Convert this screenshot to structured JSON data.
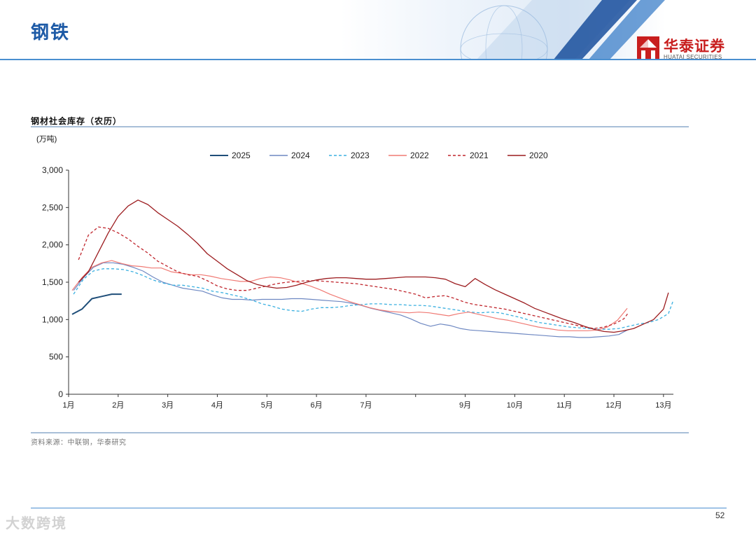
{
  "header": {
    "page_title": "钢铁",
    "logo_name": "华泰证券",
    "logo_sub": "HUATAI SECURITIES"
  },
  "chart_title": "钢材社会库存（农历）",
  "unit_label": "(万吨)",
  "source": "资料来源：中联钢，华泰研究",
  "page_number": "52",
  "watermark": "大数跨境",
  "colors": {
    "brand_blue": "#1d5aa6",
    "brand_red": "#c81e1e"
  },
  "chart_data": {
    "type": "line",
    "title": "钢材社会库存（农历）",
    "ylabel": "(万吨)",
    "xlabel": "",
    "ylim": [
      0,
      3000
    ],
    "yticks": [
      0,
      500,
      1000,
      1500,
      2000,
      2500,
      3000
    ],
    "ytick_labels": [
      "0",
      "500",
      "1,000",
      "1,500",
      "2,000",
      "2,500",
      "3,000"
    ],
    "xlim": [
      1,
      13.2
    ],
    "xticks": [
      1,
      2,
      3,
      4,
      5,
      6,
      7,
      8,
      9,
      10,
      11,
      12,
      13
    ],
    "xtick_labels": [
      "1月",
      "2月",
      "3月",
      "4月",
      "5月",
      "6月",
      "7月",
      "",
      "9月",
      "10月",
      "11月",
      "12月",
      "13月"
    ],
    "legend_position": "top",
    "series": [
      {
        "name": "2025",
        "color": "#1f4e79",
        "dash": "",
        "width": 2,
        "x": [
          1.07,
          1.27,
          1.47,
          1.67,
          1.87,
          2.07
        ],
        "y": [
          1070,
          1140,
          1280,
          1310,
          1340,
          1340
        ]
      },
      {
        "name": "2024",
        "color": "#6e88c2",
        "dash": "",
        "width": 1.2,
        "x": [
          1.1,
          1.3,
          1.5,
          1.7,
          1.9,
          2.1,
          2.3,
          2.5,
          2.7,
          2.9,
          3.1,
          3.3,
          3.5,
          3.7,
          3.9,
          4.1,
          4.3,
          4.5,
          4.7,
          4.9,
          5.1,
          5.3,
          5.5,
          5.7,
          5.9,
          6.1,
          6.3,
          6.5,
          6.7,
          6.9,
          7.1,
          7.3,
          7.5,
          7.7,
          7.9,
          8.1,
          8.3,
          8.5,
          8.7,
          8.9,
          9.1,
          9.3,
          9.5,
          9.7,
          9.9,
          10.1,
          10.3,
          10.5,
          10.7,
          10.9,
          11.1,
          11.3,
          11.5,
          11.7,
          11.9,
          12.1,
          12.3
        ],
        "y": [
          1390,
          1560,
          1700,
          1760,
          1760,
          1740,
          1700,
          1650,
          1570,
          1500,
          1460,
          1420,
          1400,
          1380,
          1330,
          1290,
          1270,
          1270,
          1260,
          1270,
          1270,
          1270,
          1280,
          1280,
          1270,
          1260,
          1250,
          1240,
          1220,
          1190,
          1150,
          1120,
          1090,
          1060,
          1010,
          950,
          910,
          940,
          920,
          880,
          860,
          850,
          840,
          830,
          820,
          810,
          800,
          790,
          780,
          770,
          770,
          760,
          760,
          770,
          780,
          800,
          870
        ]
      },
      {
        "name": "2023",
        "color": "#3bb0e0",
        "dash": "4,3",
        "width": 1.3,
        "x": [
          1.1,
          1.3,
          1.5,
          1.7,
          1.9,
          2.1,
          2.3,
          2.5,
          2.7,
          2.9,
          3.1,
          3.3,
          3.5,
          3.7,
          3.9,
          4.1,
          4.3,
          4.5,
          4.7,
          4.9,
          5.1,
          5.3,
          5.5,
          5.7,
          5.9,
          6.1,
          6.3,
          6.5,
          6.7,
          6.9,
          7.1,
          7.3,
          7.5,
          7.7,
          7.9,
          8.1,
          8.3,
          8.5,
          8.7,
          8.9,
          9.1,
          9.3,
          9.5,
          9.7,
          9.9,
          10.1,
          10.3,
          10.5,
          10.7,
          10.9,
          11.1,
          11.3,
          11.5,
          11.7,
          11.9,
          12.1,
          12.3,
          12.5,
          12.7,
          12.9,
          13.1,
          13.2
        ],
        "y": [
          1340,
          1540,
          1650,
          1680,
          1680,
          1670,
          1640,
          1590,
          1530,
          1490,
          1460,
          1460,
          1440,
          1420,
          1380,
          1360,
          1330,
          1300,
          1260,
          1210,
          1180,
          1140,
          1120,
          1110,
          1140,
          1160,
          1160,
          1170,
          1190,
          1200,
          1210,
          1210,
          1200,
          1200,
          1190,
          1190,
          1180,
          1160,
          1140,
          1120,
          1100,
          1090,
          1100,
          1090,
          1060,
          1030,
          990,
          960,
          940,
          920,
          900,
          890,
          880,
          870,
          870,
          880,
          910,
          940,
          960,
          1000,
          1080,
          1260
        ]
      },
      {
        "name": "2022",
        "color": "#f07a74",
        "dash": "",
        "width": 1.2,
        "x": [
          1.07,
          1.27,
          1.47,
          1.67,
          1.87,
          2.07,
          2.27,
          2.47,
          2.67,
          2.87,
          3.07,
          3.27,
          3.47,
          3.67,
          3.87,
          4.07,
          4.27,
          4.47,
          4.67,
          4.87,
          5.07,
          5.27,
          5.47,
          5.67,
          5.87,
          6.07,
          6.27,
          6.47,
          6.67,
          6.87,
          7.07,
          7.27,
          7.47,
          7.67,
          7.87,
          8.07,
          8.27,
          8.47,
          8.67,
          8.87,
          9.07,
          9.27,
          9.47,
          9.67,
          9.87,
          10.07,
          10.27,
          10.47,
          10.67,
          10.87,
          11.07,
          11.27,
          11.47,
          11.67,
          11.87,
          12.07,
          12.27
        ],
        "y": [
          1390,
          1560,
          1700,
          1760,
          1790,
          1750,
          1720,
          1710,
          1690,
          1690,
          1640,
          1620,
          1600,
          1600,
          1580,
          1550,
          1530,
          1510,
          1510,
          1550,
          1570,
          1560,
          1530,
          1490,
          1450,
          1400,
          1340,
          1290,
          1240,
          1200,
          1160,
          1130,
          1110,
          1100,
          1090,
          1100,
          1090,
          1070,
          1050,
          1080,
          1100,
          1070,
          1040,
          1010,
          990,
          960,
          930,
          900,
          880,
          860,
          850,
          850,
          850,
          860,
          900,
          990,
          1150
        ]
      },
      {
        "name": "2021",
        "color": "#c0262d",
        "dash": "4,3",
        "width": 1.3,
        "x": [
          1.2,
          1.4,
          1.6,
          1.8,
          2.0,
          2.2,
          2.4,
          2.6,
          2.8,
          3.0,
          3.2,
          3.4,
          3.6,
          3.8,
          4.0,
          4.2,
          4.4,
          4.6,
          4.8,
          5.0,
          5.2,
          5.4,
          5.6,
          5.8,
          6.0,
          6.2,
          6.4,
          6.6,
          6.8,
          7.0,
          7.2,
          7.4,
          7.6,
          7.8,
          8.0,
          8.2,
          8.4,
          8.6,
          8.8,
          9.0,
          9.2,
          9.4,
          9.6,
          9.8,
          10.0,
          10.2,
          10.4,
          10.6,
          10.8,
          11.0,
          11.2,
          11.4,
          11.6,
          11.8,
          12.0,
          12.2,
          12.3
        ],
        "y": [
          1800,
          2130,
          2240,
          2220,
          2160,
          2080,
          1980,
          1890,
          1780,
          1710,
          1640,
          1600,
          1580,
          1520,
          1450,
          1410,
          1390,
          1390,
          1420,
          1450,
          1480,
          1500,
          1510,
          1520,
          1520,
          1510,
          1500,
          1490,
          1480,
          1460,
          1440,
          1420,
          1400,
          1370,
          1340,
          1290,
          1310,
          1320,
          1280,
          1230,
          1200,
          1180,
          1160,
          1140,
          1110,
          1080,
          1050,
          1020,
          990,
          960,
          930,
          900,
          880,
          900,
          940,
          1010,
          1100
        ]
      },
      {
        "name": "2020",
        "color": "#9c1c1f",
        "dash": "",
        "width": 1.3,
        "x": [
          1.2,
          1.4,
          1.6,
          1.8,
          2.0,
          2.2,
          2.4,
          2.6,
          2.8,
          3.0,
          3.2,
          3.4,
          3.6,
          3.8,
          4.0,
          4.2,
          4.4,
          4.6,
          4.8,
          5.0,
          5.2,
          5.4,
          5.6,
          5.8,
          6.0,
          6.2,
          6.4,
          6.6,
          6.8,
          7.0,
          7.2,
          7.4,
          7.6,
          7.8,
          8.0,
          8.2,
          8.4,
          8.6,
          8.8,
          9.0,
          9.2,
          9.4,
          9.6,
          9.8,
          10.0,
          10.2,
          10.4,
          10.6,
          10.8,
          11.0,
          11.2,
          11.4,
          11.6,
          11.8,
          12.0,
          12.2,
          12.4,
          12.6,
          12.8,
          13.0,
          13.1
        ],
        "y": [
          1500,
          1640,
          1900,
          2160,
          2380,
          2520,
          2600,
          2540,
          2430,
          2340,
          2250,
          2140,
          2020,
          1880,
          1780,
          1680,
          1600,
          1520,
          1470,
          1440,
          1420,
          1430,
          1460,
          1500,
          1530,
          1550,
          1560,
          1560,
          1550,
          1540,
          1540,
          1550,
          1560,
          1570,
          1570,
          1570,
          1560,
          1540,
          1480,
          1440,
          1550,
          1470,
          1400,
          1340,
          1280,
          1220,
          1150,
          1100,
          1050,
          1000,
          960,
          910,
          870,
          840,
          830,
          850,
          880,
          940,
          1000,
          1140,
          1360
        ]
      }
    ]
  }
}
